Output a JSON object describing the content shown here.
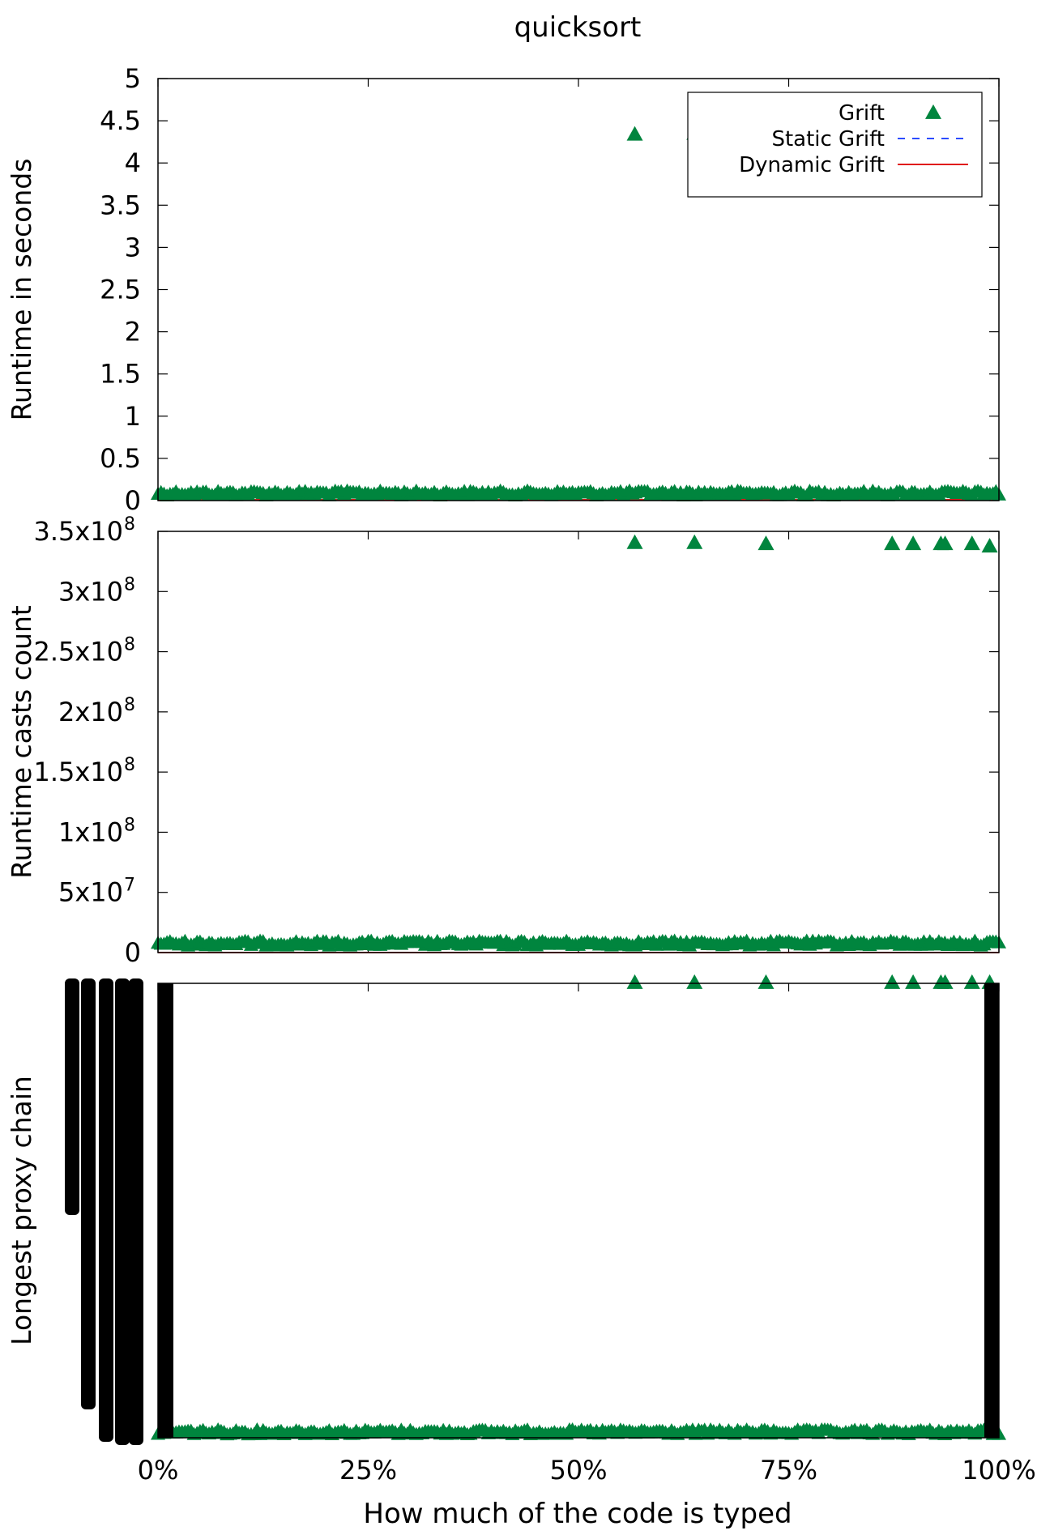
{
  "title": "quicksort",
  "xlabel": "How much of the code is typed",
  "x_ticks": [
    "0%",
    "25%",
    "50%",
    "75%",
    "100%"
  ],
  "legend": {
    "placement": "top-right",
    "entries": [
      {
        "label": "Grift",
        "style": "triangle",
        "color": "#00853e"
      },
      {
        "label": "Static Grift",
        "style": "dashed",
        "color": "#2b4bff"
      },
      {
        "label": "Dynamic Grift",
        "style": "solid",
        "color": "#e01c1c"
      }
    ]
  },
  "colors": {
    "grift": "#00853e",
    "static": "#2b4bff",
    "dynamic": "#e01c1c"
  },
  "chart_data": [
    {
      "type": "scatter",
      "ylabel": "Runtime in seconds",
      "xlim": [
        0,
        100
      ],
      "ylim": [
        0,
        5
      ],
      "y_ticks": [
        {
          "v": 0,
          "label": "0"
        },
        {
          "v": 0.5,
          "label": "0.5"
        },
        {
          "v": 1,
          "label": "1"
        },
        {
          "v": 1.5,
          "label": "1.5"
        },
        {
          "v": 2,
          "label": "2"
        },
        {
          "v": 2.5,
          "label": "2.5"
        },
        {
          "v": 3,
          "label": "3"
        },
        {
          "v": 3.5,
          "label": "3.5"
        },
        {
          "v": 4,
          "label": "4"
        },
        {
          "v": 4.5,
          "label": "4.5"
        },
        {
          "v": 5,
          "label": "5"
        }
      ],
      "series": [
        {
          "name": "Grift",
          "baseline": 0.02,
          "outliers": [
            [
              56.7,
              4.33
            ],
            [
              63.8,
              4.34
            ]
          ]
        },
        {
          "name": "Static Grift",
          "value": 0.01
        },
        {
          "name": "Dynamic Grift",
          "value": 0.01
        }
      ]
    },
    {
      "type": "scatter",
      "ylabel": "Runtime casts count",
      "xlim": [
        0,
        100
      ],
      "ylim": [
        0,
        350000000
      ],
      "y_ticks": [
        {
          "v": 0,
          "label": "0",
          "sup": ""
        },
        {
          "v": 50000000,
          "label": "5x10",
          "sup": "7"
        },
        {
          "v": 100000000,
          "label": "1x10",
          "sup": "8"
        },
        {
          "v": 150000000,
          "label": "1.5x10",
          "sup": "8"
        },
        {
          "v": 200000000,
          "label": "2x10",
          "sup": "8"
        },
        {
          "v": 250000000,
          "label": "2.5x10",
          "sup": "8"
        },
        {
          "v": 300000000,
          "label": "3x10",
          "sup": "8"
        },
        {
          "v": 350000000,
          "label": "3.5x10",
          "sup": "8"
        }
      ],
      "series": [
        {
          "name": "Grift",
          "baseline": 3000000,
          "outliers": [
            [
              56.7,
              340000000
            ],
            [
              63.8,
              340000000
            ],
            [
              72.3,
              339000000
            ],
            [
              87.3,
              339000000
            ],
            [
              89.8,
              339000000
            ],
            [
              93.1,
              339000000
            ],
            [
              93.6,
              339000000
            ],
            [
              96.8,
              339000000
            ],
            [
              98.9,
              337000000
            ]
          ]
        },
        {
          "name": "Static Grift",
          "value": 0
        },
        {
          "name": "Dynamic Grift",
          "value": 0
        }
      ]
    },
    {
      "type": "scatter",
      "ylabel": "Longest proxy chain",
      "xlim": [
        0,
        100
      ],
      "ylim": [
        0,
        1
      ],
      "y_ticks": [],
      "series": [
        {
          "name": "Grift",
          "baseline": 0,
          "outliers": [
            [
              56.7,
              1
            ],
            [
              63.8,
              1
            ],
            [
              72.3,
              1
            ],
            [
              87.3,
              1
            ],
            [
              89.8,
              1
            ],
            [
              93.1,
              1
            ],
            [
              93.6,
              1
            ],
            [
              96.8,
              1
            ],
            [
              98.9,
              1
            ]
          ]
        }
      ]
    }
  ]
}
